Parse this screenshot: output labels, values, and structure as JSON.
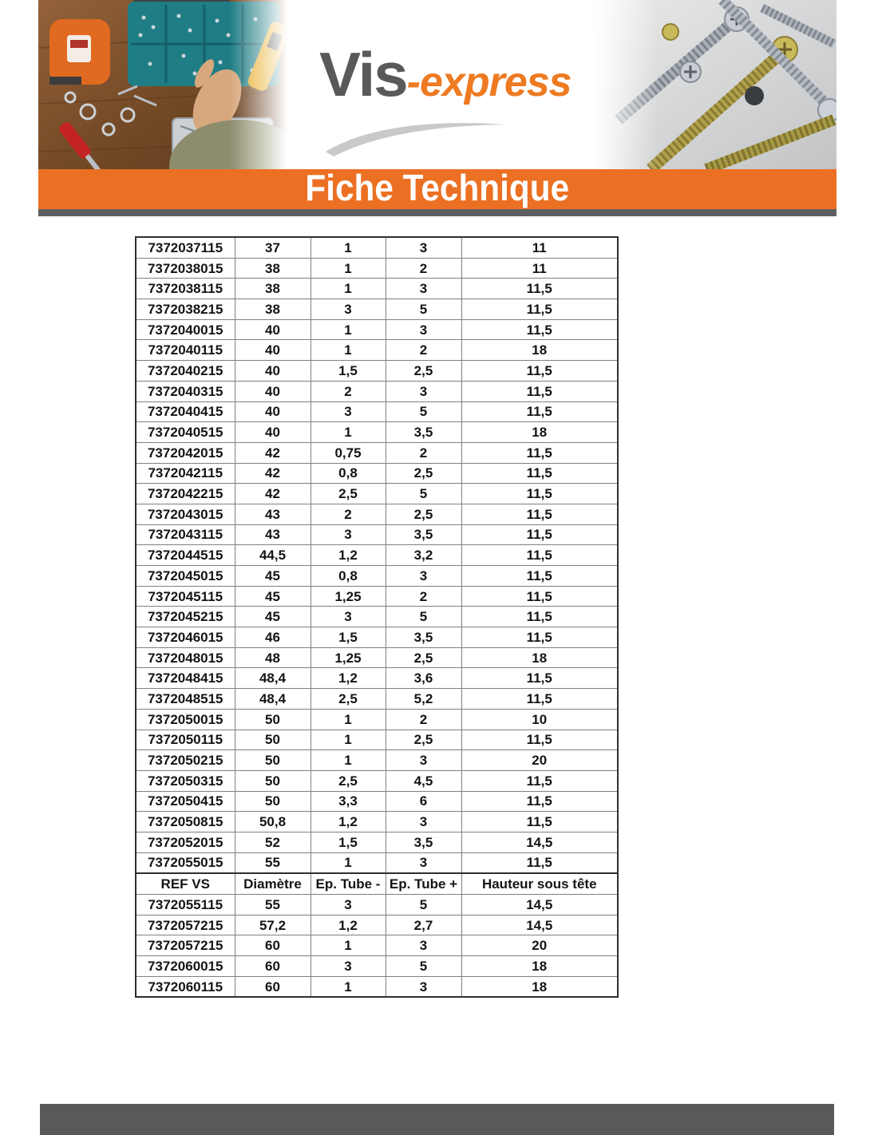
{
  "header": {
    "logo": {
      "text_primary": "Vis",
      "text_secondary": "-express"
    },
    "banner_title": "Fiche Technique",
    "left_photo": "workbench-with-tools-and-screw-boxes",
    "right_photo": "pile-of-screws-macro"
  },
  "colors": {
    "accent_orange": "#ec7023",
    "logo_orange": "#ee7a22",
    "logo_gray": "#58595b",
    "bar_gray": "#58595b",
    "table_border": "#2e2e2e"
  },
  "table": {
    "header_labels": [
      "REF VS",
      "Diamètre",
      "Ep. Tube -",
      "Ep. Tube +",
      "Hauteur sous tête"
    ],
    "rows_before_header": [
      [
        "7372037115",
        "37",
        "1",
        "3",
        "11"
      ],
      [
        "7372038015",
        "38",
        "1",
        "2",
        "11"
      ],
      [
        "7372038115",
        "38",
        "1",
        "3",
        "11,5"
      ],
      [
        "7372038215",
        "38",
        "3",
        "5",
        "11,5"
      ],
      [
        "7372040015",
        "40",
        "1",
        "3",
        "11,5"
      ],
      [
        "7372040115",
        "40",
        "1",
        "2",
        "18"
      ],
      [
        "7372040215",
        "40",
        "1,5",
        "2,5",
        "11,5"
      ],
      [
        "7372040315",
        "40",
        "2",
        "3",
        "11,5"
      ],
      [
        "7372040415",
        "40",
        "3",
        "5",
        "11,5"
      ],
      [
        "7372040515",
        "40",
        "1",
        "3,5",
        "18"
      ],
      [
        "7372042015",
        "42",
        "0,75",
        "2",
        "11,5"
      ],
      [
        "7372042115",
        "42",
        "0,8",
        "2,5",
        "11,5"
      ],
      [
        "7372042215",
        "42",
        "2,5",
        "5",
        "11,5"
      ],
      [
        "7372043015",
        "43",
        "2",
        "2,5",
        "11,5"
      ],
      [
        "7372043115",
        "43",
        "3",
        "3,5",
        "11,5"
      ],
      [
        "7372044515",
        "44,5",
        "1,2",
        "3,2",
        "11,5"
      ],
      [
        "7372045015",
        "45",
        "0,8",
        "3",
        "11,5"
      ],
      [
        "7372045115",
        "45",
        "1,25",
        "2",
        "11,5"
      ],
      [
        "7372045215",
        "45",
        "3",
        "5",
        "11,5"
      ],
      [
        "7372046015",
        "46",
        "1,5",
        "3,5",
        "11,5"
      ],
      [
        "7372048015",
        "48",
        "1,25",
        "2,5",
        "18"
      ],
      [
        "7372048415",
        "48,4",
        "1,2",
        "3,6",
        "11,5"
      ],
      [
        "7372048515",
        "48,4",
        "2,5",
        "5,2",
        "11,5"
      ],
      [
        "7372050015",
        "50",
        "1",
        "2",
        "10"
      ],
      [
        "7372050115",
        "50",
        "1",
        "2,5",
        "11,5"
      ],
      [
        "7372050215",
        "50",
        "1",
        "3",
        "20"
      ],
      [
        "7372050315",
        "50",
        "2,5",
        "4,5",
        "11,5"
      ],
      [
        "7372050415",
        "50",
        "3,3",
        "6",
        "11,5"
      ],
      [
        "7372050815",
        "50,8",
        "1,2",
        "3",
        "11,5"
      ],
      [
        "7372052015",
        "52",
        "1,5",
        "3,5",
        "14,5"
      ],
      [
        "7372055015",
        "55",
        "1",
        "3",
        "11,5"
      ]
    ],
    "rows_after_header": [
      [
        "7372055115",
        "55",
        "3",
        "5",
        "14,5"
      ],
      [
        "7372057215",
        "57,2",
        "1,2",
        "2,7",
        "14,5"
      ],
      [
        "7372057215",
        "60",
        "1",
        "3",
        "20"
      ],
      [
        "7372060015",
        "60",
        "3",
        "5",
        "18"
      ],
      [
        "7372060115",
        "60",
        "1",
        "3",
        "18"
      ]
    ]
  }
}
